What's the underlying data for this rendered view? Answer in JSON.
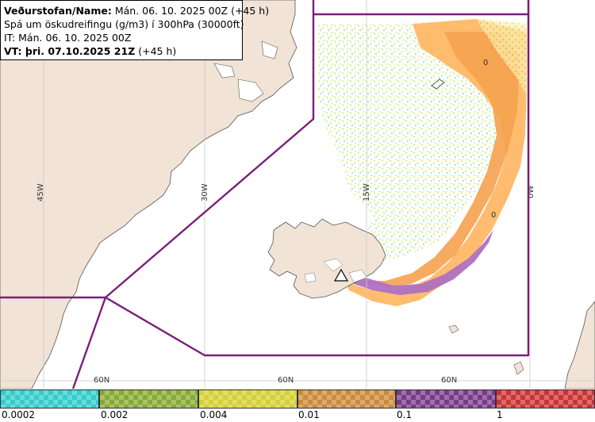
{
  "header": {
    "line1_bold": "Veðurstofan/Name:",
    "line1_rest": " Mán. 06. 10. 2025 00Z (+45 h)",
    "line2": "Spá um öskudreifingu (g/m3) í 300hPa (30000ft)",
    "line3": "IT: Mán. 06. 10. 2025 00Z",
    "line4_bold": "VT: þri. 07.10.2025 21Z",
    "line4_rest": " (+45 h)"
  },
  "grid_labels": {
    "lon_45w": "45W",
    "lon_30w": "30W",
    "lon_15w": "15W",
    "lon_0w": "0W",
    "lat_a": "60N",
    "lat_b": "60N",
    "lat_c": "60N"
  },
  "contour_labels": {
    "label_a": "0",
    "label_b": "0"
  },
  "legend": {
    "ticks": [
      "0.0002",
      "0.002",
      "0.004",
      "0.01",
      "0.1",
      "1"
    ],
    "colors": [
      "#33cccc",
      "#88aa33",
      "#d4d033",
      "#cc8a3a",
      "#7a3a8a",
      "#cc3333"
    ]
  },
  "colors": {
    "land": "#f2e3d7",
    "sea": "#ffffff",
    "boundary": "#7a1f7a",
    "ash_light": "#f3ef9a",
    "ash_cyan": "#8fe6e6",
    "ash_orange": "#ffb866",
    "ash_dark_orange": "#f5a24f",
    "ash_purple": "#b070c0"
  }
}
